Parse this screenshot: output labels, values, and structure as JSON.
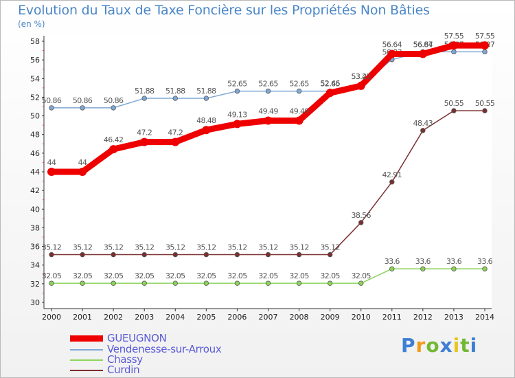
{
  "chart_data": {
    "type": "line",
    "title": "Evolution du Taux de Taxe Foncière sur les Propriétés Non Bâties",
    "ylabel": "(en %)",
    "xlabel": "",
    "ylim": [
      30,
      58
    ],
    "yticks": [
      "30",
      "32",
      "34",
      "36",
      "38",
      "40",
      "42",
      "44",
      "46",
      "48",
      "50",
      "52",
      "54",
      "56",
      "58"
    ],
    "categories": [
      "2000",
      "2001",
      "2002",
      "2003",
      "2004",
      "2005",
      "2006",
      "2007",
      "2008",
      "2009",
      "2010",
      "2011",
      "2012",
      "2013",
      "2014"
    ],
    "grid": false,
    "series": [
      {
        "name": "Curdin",
        "color": "#7b2f2f",
        "values": [
          35.12,
          35.12,
          35.12,
          35.12,
          35.12,
          35.12,
          35.12,
          35.12,
          35.12,
          35.12,
          38.56,
          42.91,
          48.43,
          50.55,
          50.55
        ],
        "labels": [
          "35.12",
          "35.12",
          "35.12",
          "35.12",
          "35.12",
          "35.12",
          "35.12",
          "35.12",
          "35.12",
          "35.12",
          "38.56",
          "42.91",
          "48.43",
          "50.55",
          "50.55"
        ]
      },
      {
        "name": "Chassy",
        "color": "#8cd35a",
        "values": [
          32.05,
          32.05,
          32.05,
          32.05,
          32.05,
          32.05,
          32.05,
          32.05,
          32.05,
          32.05,
          32.05,
          33.6,
          33.6,
          33.6,
          33.6
        ],
        "labels": [
          "32.05",
          "32.05",
          "32.05",
          "32.05",
          "32.05",
          "32.05",
          "32.05",
          "32.05",
          "32.05",
          "32.05",
          "32.05",
          "33.6",
          "33.6",
          "33.6",
          "33.6"
        ]
      },
      {
        "name": "Vendenesse-sur-Arroux",
        "color": "#7fa8d6",
        "values": [
          50.86,
          50.86,
          50.86,
          51.88,
          51.88,
          51.88,
          52.65,
          52.65,
          52.65,
          52.65,
          53.42,
          56.03,
          56.87,
          56.87,
          56.87
        ],
        "labels": [
          "50.86",
          "50.86",
          "50.86",
          "51.88",
          "51.88",
          "51.88",
          "52.65",
          "52.65",
          "52.65",
          "52.65",
          "53.42",
          "56.03",
          "56.87",
          "56.87",
          "56.87"
        ]
      },
      {
        "name": "GUEUGNON",
        "color": "#ee0000",
        "values": [
          44,
          44,
          46.42,
          47.2,
          47.2,
          48.48,
          49.13,
          49.49,
          49.49,
          52.46,
          53.22,
          56.64,
          56.64,
          57.55,
          57.55
        ],
        "labels": [
          "44",
          "44",
          "46.42",
          "47.2",
          "47.2",
          "48.48",
          "49.13",
          "49.49",
          "49.49",
          "52.46",
          "53.22",
          "56.64",
          "56.64",
          "57.55",
          "57.55"
        ]
      }
    ]
  },
  "legend": [
    {
      "name": "GUEUGNON",
      "color": "#ee0000"
    },
    {
      "name": "Vendenesse-sur-Arroux",
      "color": "#7fa8d6"
    },
    {
      "name": "Chassy",
      "color": "#8cd35a"
    },
    {
      "name": "Curdin",
      "color": "#7b2f2f"
    }
  ],
  "logo": {
    "letters": [
      "P",
      "r",
      "o",
      "x",
      "i",
      "t",
      "i"
    ],
    "colors": [
      "#3e7fd4",
      "#f29a1a",
      "#73b833",
      "#3e7fd4",
      "#e8c51c",
      "#73b833",
      "#3e7fd4"
    ]
  }
}
